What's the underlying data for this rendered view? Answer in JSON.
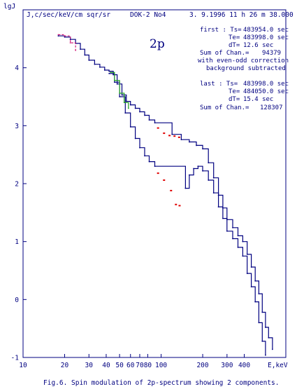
{
  "chart_data": {
    "type": "line",
    "ylabel": "lgJ",
    "units_label": "J,c/sec/keV/cm sqr/sr",
    "instrument": "DOK-2 No4",
    "datetime": "3. 9.1996 11 h 26 m 38.000 s",
    "panel_label": "2p",
    "xlabel": "E,keV",
    "caption": "Fig.6. Spin modulation of 2p-spectrum showing 2 components.",
    "x_scale": "log",
    "xlim": [
      10,
      800
    ],
    "ylim": [
      -1,
      5
    ],
    "x_ticks": [
      {
        "v": 10,
        "label": "10"
      },
      {
        "v": 20,
        "label": "20"
      },
      {
        "v": 30,
        "label": "30"
      },
      {
        "v": 40,
        "label": "40"
      },
      {
        "v": 50,
        "label": "50"
      },
      {
        "v": 60,
        "label": "60"
      },
      {
        "v": 70,
        "label": "70"
      },
      {
        "v": 80,
        "label": "80"
      },
      {
        "v": 100,
        "label": "100"
      },
      {
        "v": 200,
        "label": "200"
      },
      {
        "v": 300,
        "label": "300"
      },
      {
        "v": 400,
        "label": "400"
      }
    ],
    "y_ticks": [
      {
        "v": -1,
        "label": "-1"
      },
      {
        "v": 0,
        "label": "0"
      },
      {
        "v": 1,
        "label": "1"
      },
      {
        "v": 2,
        "label": "2"
      },
      {
        "v": 3,
        "label": "3"
      },
      {
        "v": 4,
        "label": "4"
      }
    ],
    "annotations": {
      "first_header": "first : Ts=",
      "first_ts": "483954.0 sec",
      "te_label": "Te=",
      "first_te": "483998.0 sec",
      "dt_label": "dT=",
      "first_dt": "12.6 sec",
      "sum_label": "Sum of Chan.=",
      "first_sum": "94379",
      "correction": "with even-odd correction",
      "background": "background subtracted",
      "last_header": "last : Ts=",
      "last_ts": "483998.0 sec",
      "last_te": "484050.0 sec",
      "last_dt": "15.4 sec",
      "last_sum": "128307"
    },
    "series": [
      {
        "color": "#000080",
        "points": [
          [
            18,
            4.55
          ],
          [
            20,
            4.53
          ],
          [
            22,
            4.49
          ],
          [
            24,
            4.42
          ],
          [
            26,
            4.32
          ],
          [
            28,
            4.22
          ],
          [
            30,
            4.13
          ],
          [
            33,
            4.06
          ],
          [
            36,
            4.01
          ],
          [
            39,
            3.96
          ],
          [
            42,
            3.94
          ],
          [
            45,
            3.88
          ],
          [
            48,
            3.72
          ],
          [
            52,
            3.53
          ],
          [
            56,
            3.42
          ],
          [
            60,
            3.36
          ],
          [
            65,
            3.3
          ],
          [
            70,
            3.24
          ],
          [
            76,
            3.18
          ],
          [
            82,
            3.1
          ],
          [
            90,
            3.05
          ],
          [
            120,
            2.85
          ],
          [
            140,
            2.76
          ],
          [
            160,
            2.72
          ],
          [
            180,
            2.66
          ],
          [
            200,
            2.6
          ],
          [
            220,
            2.36
          ],
          [
            240,
            2.1
          ],
          [
            260,
            1.8
          ],
          [
            280,
            1.58
          ],
          [
            300,
            1.38
          ],
          [
            330,
            1.24
          ],
          [
            360,
            1.1
          ],
          [
            390,
            1.0
          ],
          [
            420,
            0.78
          ],
          [
            450,
            0.56
          ],
          [
            480,
            0.32
          ],
          [
            510,
            0.1
          ],
          [
            540,
            -0.22
          ],
          [
            570,
            -0.48
          ],
          [
            600,
            -0.66
          ],
          [
            640,
            -0.86
          ]
        ]
      },
      {
        "color": "#000080",
        "points": [
          [
            42,
            3.9
          ],
          [
            46,
            3.75
          ],
          [
            50,
            3.5
          ],
          [
            55,
            3.22
          ],
          [
            60,
            2.98
          ],
          [
            65,
            2.78
          ],
          [
            70,
            2.62
          ],
          [
            76,
            2.48
          ],
          [
            82,
            2.38
          ],
          [
            90,
            2.3
          ],
          [
            150,
            1.92
          ],
          [
            160,
            2.15
          ],
          [
            172,
            2.26
          ],
          [
            185,
            2.3
          ],
          [
            200,
            2.22
          ],
          [
            220,
            2.06
          ],
          [
            240,
            1.84
          ],
          [
            260,
            1.6
          ],
          [
            280,
            1.4
          ],
          [
            300,
            1.18
          ],
          [
            330,
            1.05
          ],
          [
            360,
            0.9
          ],
          [
            390,
            0.75
          ],
          [
            420,
            0.45
          ],
          [
            450,
            0.22
          ],
          [
            480,
            -0.04
          ],
          [
            510,
            -0.4
          ],
          [
            540,
            -0.72
          ],
          [
            570,
            -0.96
          ]
        ]
      },
      {
        "color": "#d01878",
        "points": [
          [
            18,
            4.57
          ],
          [
            20,
            4.55
          ],
          [
            22,
            4.43
          ],
          [
            24,
            4.3
          ]
        ]
      },
      {
        "color": "#20a020",
        "points": [
          [
            43,
            3.92
          ],
          [
            46,
            3.78
          ],
          [
            50,
            3.56
          ],
          [
            54,
            3.4
          ],
          [
            58,
            3.3
          ]
        ]
      },
      {
        "color": "#e00000",
        "points": [
          [
            95,
            2.96
          ],
          [
            105,
            2.87
          ],
          [
            115,
            2.83
          ],
          [
            125,
            2.82
          ],
          [
            135,
            2.8
          ],
          [
            95,
            2.18
          ],
          [
            105,
            2.06
          ],
          [
            118,
            1.88
          ],
          [
            128,
            1.64
          ],
          [
            136,
            1.62
          ]
        ]
      }
    ]
  }
}
